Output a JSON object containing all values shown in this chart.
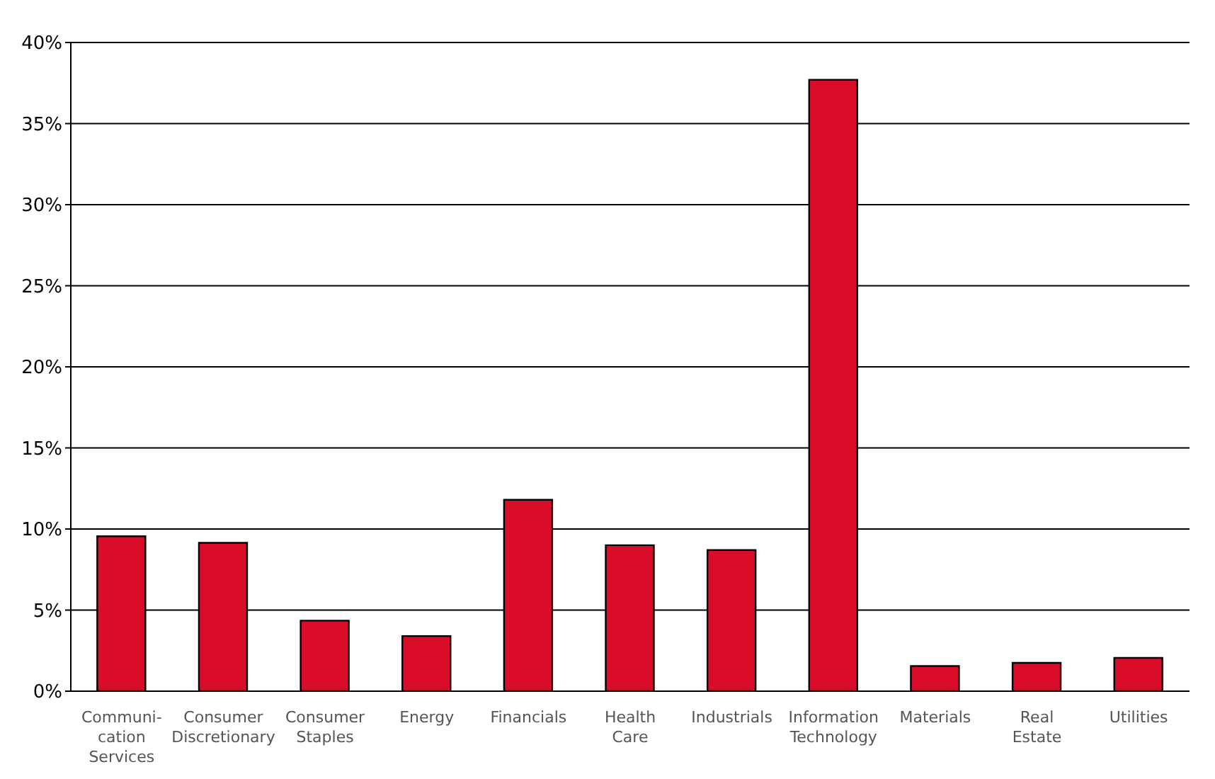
{
  "chart_data": {
    "type": "bar",
    "categories": [
      "Communi-cation Services",
      "Consumer Discretionary",
      "Consumer Staples",
      "Energy",
      "Financials",
      "Health Care",
      "Industrials",
      "Information Technology",
      "Materials",
      "Real Estate",
      "Utilities"
    ],
    "values": [
      9.55,
      9.15,
      4.35,
      3.4,
      11.8,
      9.0,
      8.7,
      37.7,
      1.55,
      1.75,
      2.05
    ],
    "color": "#d90c29",
    "ylim": [
      0,
      40
    ],
    "yticks": [
      {
        "value": 0,
        "label": "0%"
      },
      {
        "value": 5,
        "label": "5%"
      },
      {
        "value": 10,
        "label": "10%"
      },
      {
        "value": 15,
        "label": "15%"
      },
      {
        "value": 20,
        "label": "20%"
      },
      {
        "value": 25,
        "label": "25%"
      },
      {
        "value": 30,
        "label": "30%"
      },
      {
        "value": 35,
        "label": "35%"
      },
      {
        "value": 40,
        "label": "40%"
      }
    ],
    "grid": "y",
    "legend": false
  }
}
